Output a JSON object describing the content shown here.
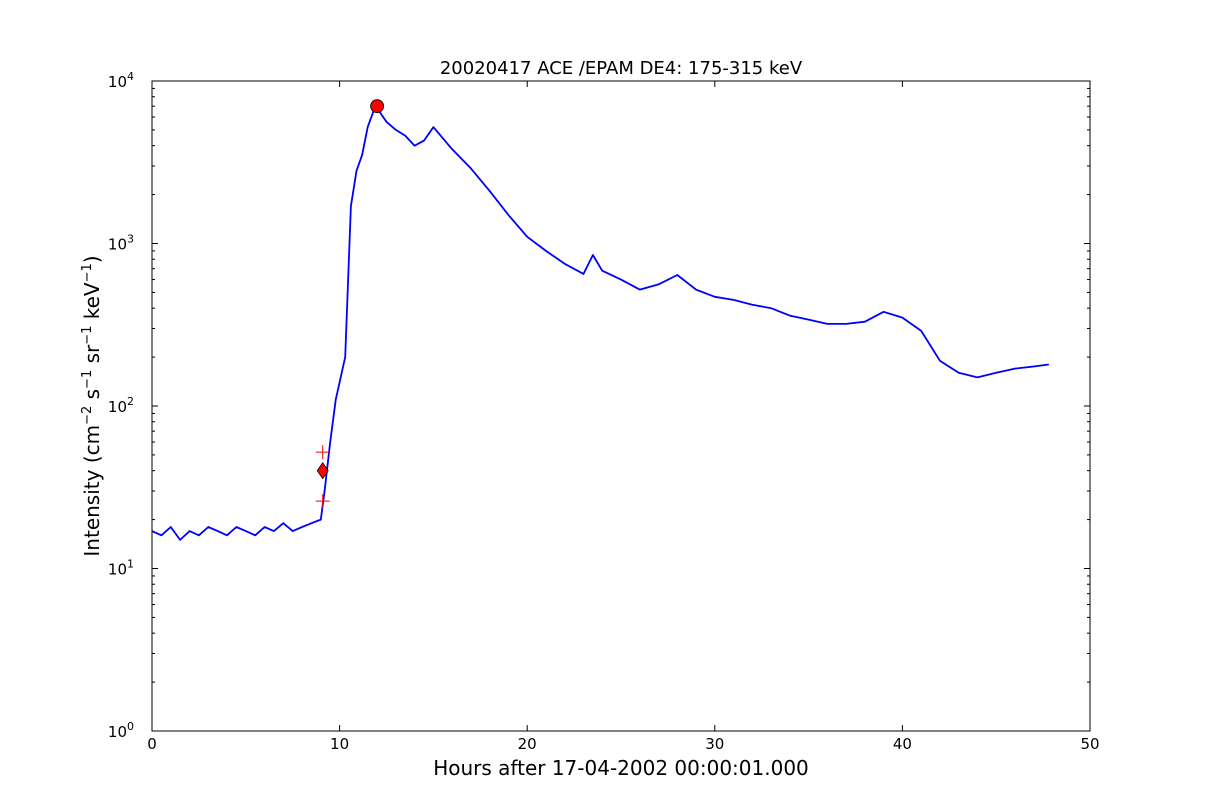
{
  "chart_data": {
    "type": "line",
    "title": "20020417 ACE /EPAM DE4: 175-315 keV",
    "xlabel": "Hours after 17-04-2002 00:00:01.000",
    "ylabel": {
      "prefix": "Intensity (cm",
      "parts": [
        {
          "text": "Intensity (cm",
          "sup": false
        },
        {
          "text": "−2",
          "sup": true
        },
        {
          "text": " s",
          "sup": false
        },
        {
          "text": "−1",
          "sup": true
        },
        {
          "text": " sr",
          "sup": false
        },
        {
          "text": "−1",
          "sup": true
        },
        {
          "text": " keV",
          "sup": false
        },
        {
          "text": "−1",
          "sup": true
        },
        {
          "text": ")",
          "sup": false
        }
      ]
    },
    "xlim": [
      0,
      50
    ],
    "ylim": [
      1,
      10000
    ],
    "yscale": "log",
    "xticks": [
      0,
      10,
      20,
      30,
      40,
      50
    ],
    "yticks": [
      {
        "value": 1,
        "base": "10",
        "exp": "0"
      },
      {
        "value": 10,
        "base": "10",
        "exp": "1"
      },
      {
        "value": 100,
        "base": "10",
        "exp": "2"
      },
      {
        "value": 1000,
        "base": "10",
        "exp": "3"
      },
      {
        "value": 10000,
        "base": "10",
        "exp": "4"
      }
    ],
    "grid": false,
    "colors": {
      "raw": "#000000",
      "smoothed": "#0000ff",
      "onset_marker": "#ff0000",
      "peak_marker": "#ff0000"
    },
    "series": [
      {
        "style": "raw",
        "x": [
          0.0,
          0.5,
          1.0,
          1.5,
          2.0,
          2.5,
          3.0,
          3.5,
          4.0,
          4.5,
          5.0,
          5.5,
          6.0,
          6.5,
          7.0,
          7.5,
          8.0,
          8.5,
          9.0,
          9.2,
          9.5,
          9.8,
          10.0,
          10.3,
          10.6,
          10.9,
          11.2,
          11.5,
          11.8,
          12.0,
          12.5,
          13.0,
          13.5,
          14.0,
          14.5,
          15.0,
          16.0,
          17.0,
          18.0,
          19.0,
          20.0,
          21.0,
          22.0,
          23.0,
          23.5,
          24.0,
          25.0,
          26.0,
          27.0,
          28.0,
          29.0,
          30.0,
          31.0,
          32.0,
          33.0,
          34.0,
          35.0,
          36.0,
          37.0,
          38.0,
          39.0,
          40.0,
          41.0,
          42.0,
          43.0,
          44.0,
          45.0,
          46.0,
          47.0,
          47.8
        ],
        "y": [
          17,
          16,
          18,
          15,
          17,
          16,
          18,
          17,
          16,
          18,
          17,
          16,
          18,
          17,
          19,
          17,
          18,
          19,
          20,
          30,
          60,
          110,
          140,
          200,
          1700,
          2800,
          3500,
          5200,
          6500,
          6800,
          5600,
          5000,
          4600,
          4000,
          4300,
          5200,
          3800,
          2900,
          2100,
          1500,
          1100,
          900,
          750,
          650,
          850,
          680,
          600,
          520,
          560,
          640,
          520,
          470,
          450,
          420,
          400,
          360,
          340,
          320,
          320,
          330,
          380,
          350,
          290,
          190,
          160,
          150,
          160,
          170,
          175,
          180
        ]
      },
      {
        "style": "smoothed",
        "x": [
          0.0,
          0.5,
          1.0,
          1.5,
          2.0,
          2.5,
          3.0,
          3.5,
          4.0,
          4.5,
          5.0,
          5.5,
          6.0,
          6.5,
          7.0,
          7.5,
          8.0,
          8.5,
          9.0,
          9.2,
          9.5,
          9.8,
          10.0,
          10.3,
          10.6,
          10.9,
          11.2,
          11.5,
          11.8,
          12.0,
          12.5,
          13.0,
          13.5,
          14.0,
          14.5,
          15.0,
          16.0,
          17.0,
          18.0,
          19.0,
          20.0,
          21.0,
          22.0,
          23.0,
          23.5,
          24.0,
          25.0,
          26.0,
          27.0,
          28.0,
          29.0,
          30.0,
          31.0,
          32.0,
          33.0,
          34.0,
          35.0,
          36.0,
          37.0,
          38.0,
          39.0,
          40.0,
          41.0,
          42.0,
          43.0,
          44.0,
          45.0,
          46.0,
          47.0,
          47.8
        ],
        "y": [
          17,
          16,
          18,
          15,
          17,
          16,
          18,
          17,
          16,
          18,
          17,
          16,
          18,
          17,
          19,
          17,
          18,
          19,
          20,
          30,
          60,
          110,
          140,
          200,
          1700,
          2800,
          3500,
          5200,
          6500,
          6800,
          5600,
          5000,
          4600,
          4000,
          4300,
          5200,
          3800,
          2900,
          2100,
          1500,
          1100,
          900,
          750,
          650,
          850,
          680,
          600,
          520,
          560,
          640,
          520,
          470,
          450,
          420,
          400,
          360,
          340,
          320,
          320,
          330,
          380,
          350,
          290,
          190,
          160,
          150,
          160,
          170,
          175,
          180
        ]
      }
    ],
    "markers": [
      {
        "kind": "onset",
        "shape": "diamond",
        "x": 9.1,
        "y": 40
      },
      {
        "kind": "onset-upper",
        "shape": "plus",
        "x": 9.1,
        "y": 52
      },
      {
        "kind": "onset-lower",
        "shape": "plus",
        "x": 9.1,
        "y": 26
      },
      {
        "kind": "peak",
        "shape": "circle",
        "x": 12.0,
        "y": 7000
      }
    ]
  }
}
